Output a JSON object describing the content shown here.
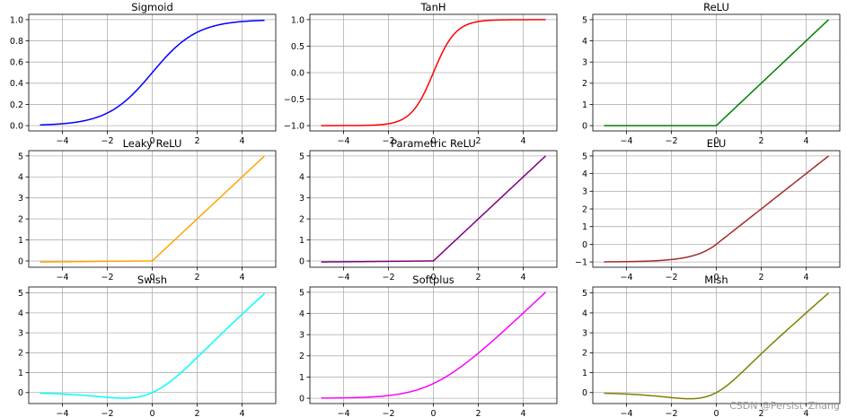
{
  "watermark": "CSDN @Persist_Zhang",
  "chart_data": [
    {
      "type": "line",
      "title": "Sigmoid",
      "color": "#0000ff",
      "fn": "sigmoid",
      "xlim": [
        -5.5,
        5.5
      ],
      "ylim": [
        -0.05,
        1.05
      ],
      "xticks": [
        -4,
        -2,
        0,
        2,
        4
      ],
      "xtick_labels": [
        "−4",
        "−2",
        "0",
        "2",
        "4"
      ],
      "yticks": [
        0.0,
        0.2,
        0.4,
        0.6,
        0.8,
        1.0
      ],
      "ytick_labels": [
        "0.0",
        "0.2",
        "0.4",
        "0.6",
        "0.8",
        "1.0"
      ],
      "x": [
        -5,
        -4,
        -3,
        -2,
        -1,
        0,
        1,
        2,
        3,
        4,
        5
      ],
      "y": [
        0.007,
        0.018,
        0.047,
        0.119,
        0.269,
        0.5,
        0.731,
        0.881,
        0.953,
        0.982,
        0.993
      ]
    },
    {
      "type": "line",
      "title": "TanH",
      "color": "#ff0000",
      "fn": "tanh",
      "xlim": [
        -5.5,
        5.5
      ],
      "ylim": [
        -1.1,
        1.1
      ],
      "xticks": [
        -4,
        -2,
        0,
        2,
        4
      ],
      "xtick_labels": [
        "−4",
        "−2",
        "0",
        "2",
        "4"
      ],
      "yticks": [
        -1.0,
        -0.5,
        0.0,
        0.5,
        1.0
      ],
      "ytick_labels": [
        "−1.0",
        "−0.5",
        "0.0",
        "0.5",
        "1.0"
      ],
      "x": [
        -5,
        -4,
        -3,
        -2,
        -1,
        0,
        1,
        2,
        3,
        4,
        5
      ],
      "y": [
        -1.0,
        -0.999,
        -0.995,
        -0.964,
        -0.762,
        0.0,
        0.762,
        0.964,
        0.995,
        0.999,
        1.0
      ]
    },
    {
      "type": "line",
      "title": "ReLU",
      "color": "#008000",
      "fn": "relu",
      "xlim": [
        -5.5,
        5.5
      ],
      "ylim": [
        -0.25,
        5.25
      ],
      "xticks": [
        -4,
        -2,
        0,
        2,
        4
      ],
      "xtick_labels": [
        "−4",
        "−2",
        "0",
        "2",
        "4"
      ],
      "yticks": [
        0,
        1,
        2,
        3,
        4,
        5
      ],
      "ytick_labels": [
        "0",
        "1",
        "2",
        "3",
        "4",
        "5"
      ],
      "x": [
        -5,
        0,
        5
      ],
      "y": [
        0,
        0,
        5
      ]
    },
    {
      "type": "line",
      "title": "Leaky ReLU",
      "color": "#ffa500",
      "fn": "leaky",
      "xlim": [
        -5.5,
        5.5
      ],
      "ylim": [
        -0.3,
        5.25
      ],
      "xticks": [
        -4,
        -2,
        0,
        2,
        4
      ],
      "xtick_labels": [
        "−4",
        "−2",
        "0",
        "2",
        "4"
      ],
      "yticks": [
        0,
        1,
        2,
        3,
        4,
        5
      ],
      "ytick_labels": [
        "0",
        "1",
        "2",
        "3",
        "4",
        "5"
      ],
      "x": [
        -5,
        0,
        5
      ],
      "y": [
        -0.05,
        0,
        5
      ]
    },
    {
      "type": "line",
      "title": "Parametric ReLU",
      "color": "#800080",
      "fn": "prelu",
      "xlim": [
        -5.5,
        5.5
      ],
      "ylim": [
        -0.3,
        5.25
      ],
      "xticks": [
        -4,
        -2,
        0,
        2,
        4
      ],
      "xtick_labels": [
        "−4",
        "−2",
        "0",
        "2",
        "4"
      ],
      "yticks": [
        0,
        1,
        2,
        3,
        4,
        5
      ],
      "ytick_labels": [
        "0",
        "1",
        "2",
        "3",
        "4",
        "5"
      ],
      "x": [
        -5,
        0,
        5
      ],
      "y": [
        -0.05,
        0,
        5
      ]
    },
    {
      "type": "line",
      "title": "ELU",
      "color": "#a52a2a",
      "fn": "elu",
      "xlim": [
        -5.5,
        5.5
      ],
      "ylim": [
        -1.3,
        5.3
      ],
      "xticks": [
        -4,
        -2,
        0,
        2,
        4
      ],
      "xtick_labels": [
        "−4",
        "−2",
        "0",
        "2",
        "4"
      ],
      "yticks": [
        -1,
        0,
        1,
        2,
        3,
        4,
        5
      ],
      "ytick_labels": [
        "−1",
        "0",
        "1",
        "2",
        "3",
        "4",
        "5"
      ],
      "x": [
        -5,
        -4,
        -3,
        -2,
        -1,
        0,
        5
      ],
      "y": [
        -0.993,
        -0.982,
        -0.95,
        -0.865,
        -0.632,
        0,
        5
      ]
    },
    {
      "type": "line",
      "title": "Swish",
      "color": "#00ffff",
      "fn": "swish",
      "xlim": [
        -5.5,
        5.5
      ],
      "ylim": [
        -0.55,
        5.3
      ],
      "xticks": [
        -4,
        -2,
        0,
        2,
        4
      ],
      "xtick_labels": [
        "−4",
        "−2",
        "0",
        "2",
        "4"
      ],
      "yticks": [
        0,
        1,
        2,
        3,
        4,
        5
      ],
      "ytick_labels": [
        "0",
        "1",
        "2",
        "3",
        "4",
        "5"
      ],
      "x": [
        -5,
        -4,
        -3,
        -2,
        -1,
        0,
        1,
        2,
        3,
        4,
        5
      ],
      "y": [
        -0.033,
        -0.072,
        -0.142,
        -0.238,
        -0.269,
        0,
        0.731,
        1.762,
        2.858,
        3.928,
        4.967
      ]
    },
    {
      "type": "line",
      "title": "Softplus",
      "color": "#ff00ff",
      "fn": "softplus",
      "xlim": [
        -5.5,
        5.5
      ],
      "ylim": [
        -0.25,
        5.25
      ],
      "xticks": [
        -4,
        -2,
        0,
        2,
        4
      ],
      "xtick_labels": [
        "−4",
        "−2",
        "0",
        "2",
        "4"
      ],
      "yticks": [
        0,
        1,
        2,
        3,
        4,
        5
      ],
      "ytick_labels": [
        "0",
        "1",
        "2",
        "3",
        "4",
        "5"
      ],
      "x": [
        -5,
        -4,
        -3,
        -2,
        -1,
        0,
        1,
        2,
        3,
        4,
        5
      ],
      "y": [
        0.007,
        0.018,
        0.049,
        0.127,
        0.313,
        0.693,
        1.313,
        2.127,
        3.049,
        4.018,
        5.007
      ]
    },
    {
      "type": "line",
      "title": "Mish",
      "color": "#808000",
      "fn": "mish",
      "xlim": [
        -5.5,
        5.5
      ],
      "ylim": [
        -0.55,
        5.3
      ],
      "xticks": [
        -4,
        -2,
        0,
        2,
        4
      ],
      "xtick_labels": [
        "−4",
        "−2",
        "0",
        "2",
        "4"
      ],
      "yticks": [
        0,
        1,
        2,
        3,
        4,
        5
      ],
      "ytick_labels": [
        "0",
        "1",
        "2",
        "3",
        "4",
        "5"
      ],
      "x": [
        -5,
        -4,
        -3,
        -2,
        -1,
        0,
        1,
        2,
        3,
        4,
        5
      ],
      "y": [
        -0.034,
        -0.073,
        -0.146,
        -0.252,
        -0.303,
        0,
        0.865,
        1.944,
        2.987,
        3.997,
        5.0
      ]
    }
  ]
}
